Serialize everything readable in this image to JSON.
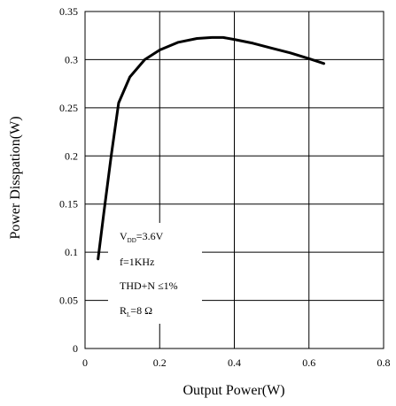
{
  "chart_data": {
    "type": "line",
    "title": "",
    "xlabel": "Output Power(W)",
    "ylabel": "Power Disspation(W)",
    "xlim": [
      0,
      0.8
    ],
    "ylim": [
      0,
      0.35
    ],
    "xticks": [
      "0",
      "0.2",
      "0.4",
      "0.6",
      "0.8"
    ],
    "yticks": [
      "0",
      "0.05",
      "0.1",
      "0.15",
      "0.2",
      "0.25",
      "0.3",
      "0.35"
    ],
    "grid": true,
    "series": [
      {
        "x": [
          0.035,
          0.05,
          0.07,
          0.09,
          0.12,
          0.16,
          0.2,
          0.25,
          0.3,
          0.34,
          0.37,
          0.4,
          0.45,
          0.5,
          0.55,
          0.6,
          0.64
        ],
        "y": [
          0.093,
          0.14,
          0.2,
          0.255,
          0.282,
          0.3,
          0.31,
          0.318,
          0.322,
          0.323,
          0.323,
          0.321,
          0.317,
          0.312,
          0.307,
          0.301,
          0.296
        ],
        "color": "#000000"
      }
    ],
    "annotations": [
      {
        "main": "V",
        "sub": "DD",
        "rest": "=3.6V"
      },
      {
        "main": "f=1KHz"
      },
      {
        "main": "THD+N ≤1%"
      },
      {
        "main": "R",
        "sub": "L",
        "rest": "=8 Ω"
      }
    ]
  }
}
